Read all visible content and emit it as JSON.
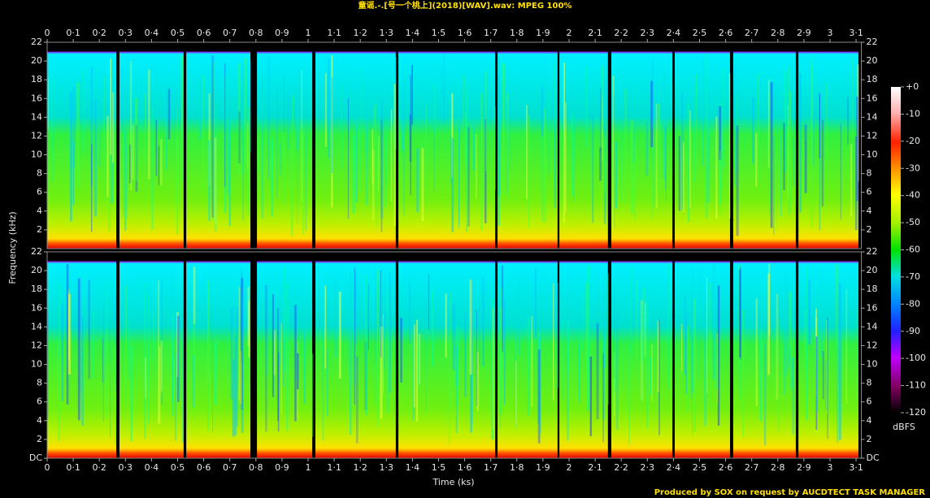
{
  "chart_data": {
    "type": "spectrogram",
    "title": "童谣.-.[号一个桃上](2018)[WAV].wav: MPEG 100%",
    "x_label": "Time (ks)",
    "y_label": "Frequency (kHz)",
    "colorbar_label": "dBFS",
    "footer": "Produced by SOX on request by AUCDTECT TASK MANAGER",
    "xlim": [
      0,
      3.12
    ],
    "ylim": [
      0,
      22
    ],
    "colorlim": [
      -120,
      0
    ],
    "xticks": [
      0,
      {
        "value": 0.1,
        "label": "0·1"
      },
      {
        "value": 0.2,
        "label": "0·2"
      },
      {
        "value": 0.3,
        "label": "0·3"
      },
      {
        "value": 0.4,
        "label": "0·4"
      },
      {
        "value": 0.5,
        "label": "0·5"
      },
      {
        "value": 0.6,
        "label": "0·6"
      },
      {
        "value": 0.7,
        "label": "0·7"
      },
      {
        "value": 0.8,
        "label": "0·8"
      },
      {
        "value": 0.9,
        "label": "0·9"
      },
      1,
      {
        "value": 1.1,
        "label": "1·1"
      },
      {
        "value": 1.2,
        "label": "1·2"
      },
      {
        "value": 1.3,
        "label": "1·3"
      },
      {
        "value": 1.4,
        "label": "1·4"
      },
      {
        "value": 1.5,
        "label": "1·5"
      },
      {
        "value": 1.6,
        "label": "1·6"
      },
      {
        "value": 1.7,
        "label": "1·7"
      },
      {
        "value": 1.8,
        "label": "1·8"
      },
      {
        "value": 1.9,
        "label": "1·9"
      },
      2,
      {
        "value": 2.1,
        "label": "2·1"
      },
      {
        "value": 2.2,
        "label": "2·2"
      },
      {
        "value": 2.3,
        "label": "2·3"
      },
      {
        "value": 2.4,
        "label": "2·4"
      },
      {
        "value": 2.5,
        "label": "2·5"
      },
      {
        "value": 2.6,
        "label": "2·6"
      },
      {
        "value": 2.7,
        "label": "2·7"
      },
      {
        "value": 2.8,
        "label": "2·8"
      },
      {
        "value": 2.9,
        "label": "2·9"
      },
      3,
      {
        "value": 3.1,
        "label": "3·1"
      }
    ],
    "yticks": [
      {
        "value": 0,
        "label": "DC"
      },
      2,
      4,
      6,
      8,
      10,
      12,
      14,
      16,
      18,
      20,
      22
    ],
    "colorticks": [
      {
        "value": 0,
        "label": "+0"
      },
      -10,
      -20,
      -30,
      -40,
      -50,
      -60,
      -70,
      -80,
      -90,
      -100,
      -110,
      -120
    ],
    "track_starts": [
      0,
      0.277,
      0.533,
      0.804,
      1.028,
      1.346,
      1.726,
      1.963,
      2.162,
      2.405,
      2.629,
      2.879
    ],
    "track_ends": [
      0.265,
      0.523,
      0.779,
      1.016,
      1.336,
      1.717,
      1.956,
      2.149,
      2.396,
      2.617,
      2.869,
      3.109
    ]
  }
}
